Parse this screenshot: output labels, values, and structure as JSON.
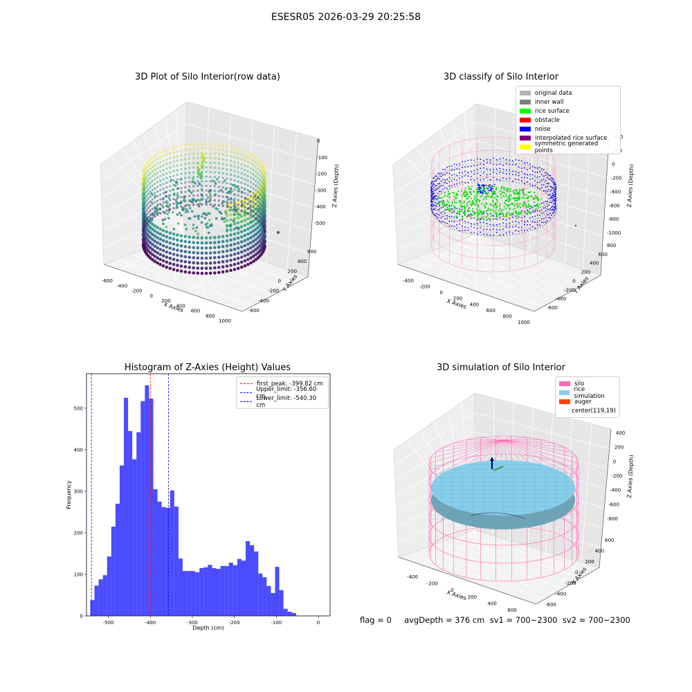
{
  "suptitle": "ESESR05 2026-03-29 20:25:58",
  "footer": "flag = 0     avgDepth = 376 cm  sv1 = 700~2300  sv2 = 700~2300",
  "chart_data": [
    {
      "type": "scatter",
      "title": "3D Plot of Silo Interior(row data)",
      "xlabel": "X Axies",
      "ylabel": "Y Axies",
      "zlabel": "Z Axies (Depth)",
      "x_ticks": [
        "-600",
        "-400",
        "-200",
        "0",
        "200",
        "400",
        "600",
        "800",
        "1000"
      ],
      "y_ticks": [
        "-600",
        "-400",
        "-200",
        "0",
        "200",
        "400",
        "600"
      ],
      "z_ticks": [
        "0",
        "-100",
        "-200",
        "-300",
        "-400",
        "-500"
      ]
    },
    {
      "type": "scatter",
      "title": "3D classify of Silo Interior",
      "xlabel": "X Axies",
      "ylabel": "Y Axies",
      "zlabel": "Z Axies (Depth)",
      "x_ticks": [
        "-400",
        "-200",
        "0",
        "200",
        "400",
        "600",
        "800",
        "1000"
      ],
      "y_ticks": [
        "-600",
        "-400",
        "-200",
        "0",
        "200",
        "400",
        "600",
        "800"
      ],
      "z_ticks": [
        "400",
        "200",
        "0",
        "-200",
        "-400",
        "-600",
        "-800",
        "-1000"
      ],
      "legend": [
        {
          "label": "original data",
          "color": "#b3b3b3"
        },
        {
          "label": "inner wall",
          "color": "#7f7f7f"
        },
        {
          "label": "rice surface",
          "color": "#00ff00"
        },
        {
          "label": "obstacle",
          "color": "#ff0000"
        },
        {
          "label": "noise",
          "color": "#0000ff"
        },
        {
          "label": "interpolated rice surface",
          "color": "#800080"
        },
        {
          "label": "symmetric generated points",
          "color": "#ffff00"
        }
      ]
    },
    {
      "type": "bar",
      "title": "Histogram of Z-Axies (Height) Values",
      "xlabel": "Depth (cm)",
      "ylabel": "Frequency",
      "xlim": [
        -552,
        28
      ],
      "ylim": [
        0,
        583
      ],
      "x_ticks": [
        -500,
        -400,
        -300,
        -200,
        -100,
        0
      ],
      "y_ticks": [
        0,
        100,
        200,
        300,
        400,
        500
      ],
      "bin_start": -543,
      "bin_width": 10,
      "values": [
        38,
        73,
        88,
        98,
        143,
        215,
        270,
        362,
        525,
        445,
        377,
        442,
        517,
        555,
        523,
        305,
        275,
        262,
        260,
        302,
        263,
        138,
        108,
        108,
        108,
        105,
        115,
        117,
        123,
        115,
        113,
        120,
        120,
        128,
        122,
        137,
        133,
        180,
        170,
        155,
        102,
        93,
        72,
        55,
        118,
        62,
        17,
        10,
        7
      ],
      "color": "#0000ff",
      "vlines": [
        {
          "label": "first_peak: -399.82 cm",
          "x": -399.82,
          "color": "#ff0000"
        },
        {
          "label": "Upper_limit: -356.60 cm",
          "x": -356.6,
          "color": "#0000ff"
        },
        {
          "label": "Lower_limit: -540.30 cm",
          "x": -540.3,
          "color": "#0000ff"
        }
      ]
    },
    {
      "type": "scatter",
      "title": "3D simulation of Silo Interior",
      "xlabel": "X Axies",
      "ylabel": "Y Axies",
      "zlabel": "Z Axies (Depth)",
      "x_ticks": [
        "-400",
        "-200",
        "0",
        "200",
        "400",
        "600"
      ],
      "y_ticks": [
        "-600",
        "-400",
        "-200",
        "0",
        "200",
        "400",
        "600"
      ],
      "z_ticks": [
        "400",
        "200",
        "0",
        "-200",
        "-400",
        "-600",
        "-800"
      ],
      "legend": [
        {
          "label": "silo",
          "color": "#ff69b4"
        },
        {
          "label": "rice simulation",
          "color": "#87ceeb"
        },
        {
          "label": "auger",
          "color": "#ff4500"
        },
        {
          "label": "center(119,19)",
          "color": "#ffffff"
        }
      ]
    }
  ]
}
